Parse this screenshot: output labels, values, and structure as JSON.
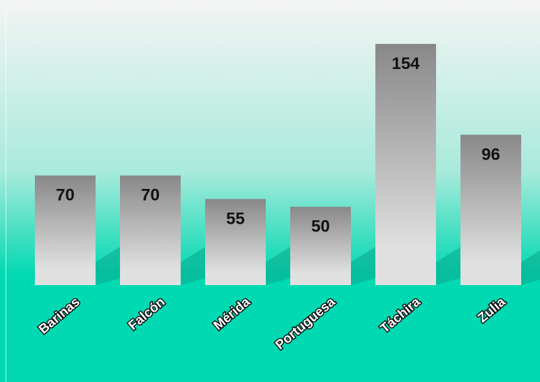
{
  "chart_data": {
    "type": "bar",
    "categories": [
      "Barinas",
      "Falcón",
      "Mérida",
      "Portuguesa",
      "Táchira",
      "Zulia"
    ],
    "values": [
      70,
      70,
      55,
      50,
      154,
      96
    ],
    "title": "",
    "xlabel": "",
    "ylabel": "",
    "ylim": [
      0,
      154
    ],
    "grid": false,
    "legend": "none",
    "data_labels": true
  },
  "colors": {
    "background_top": "#f4f4f4",
    "background_mid": "#a8eadb",
    "background_bottom": "#00d9b2",
    "bar_top": "#888888",
    "bar_bottom": "#e0e0e0",
    "shadow": "#0aa88c"
  }
}
